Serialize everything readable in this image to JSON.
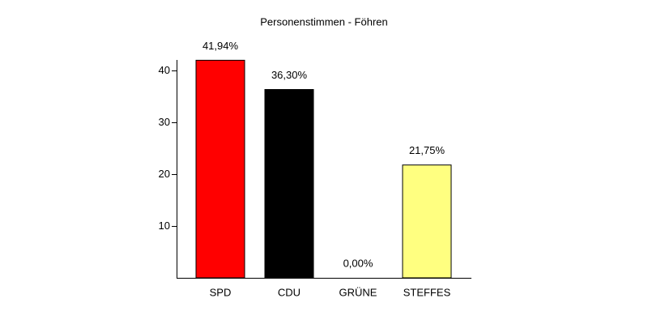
{
  "chart_data": {
    "type": "bar",
    "title": "Personenstimmen - Föhren",
    "categories": [
      "SPD",
      "CDU",
      "GRÜNE",
      "STEFFES"
    ],
    "values": [
      41.94,
      36.3,
      0,
      21.75
    ],
    "value_labels": [
      "41,94%",
      "36,30%",
      "0,00%",
      "21,75%"
    ],
    "colors": [
      "#ff0000",
      "#000000",
      "#00a000",
      "#ffff80"
    ],
    "ylim": [
      0,
      42
    ],
    "yticks": [
      10,
      20,
      30,
      40
    ]
  }
}
